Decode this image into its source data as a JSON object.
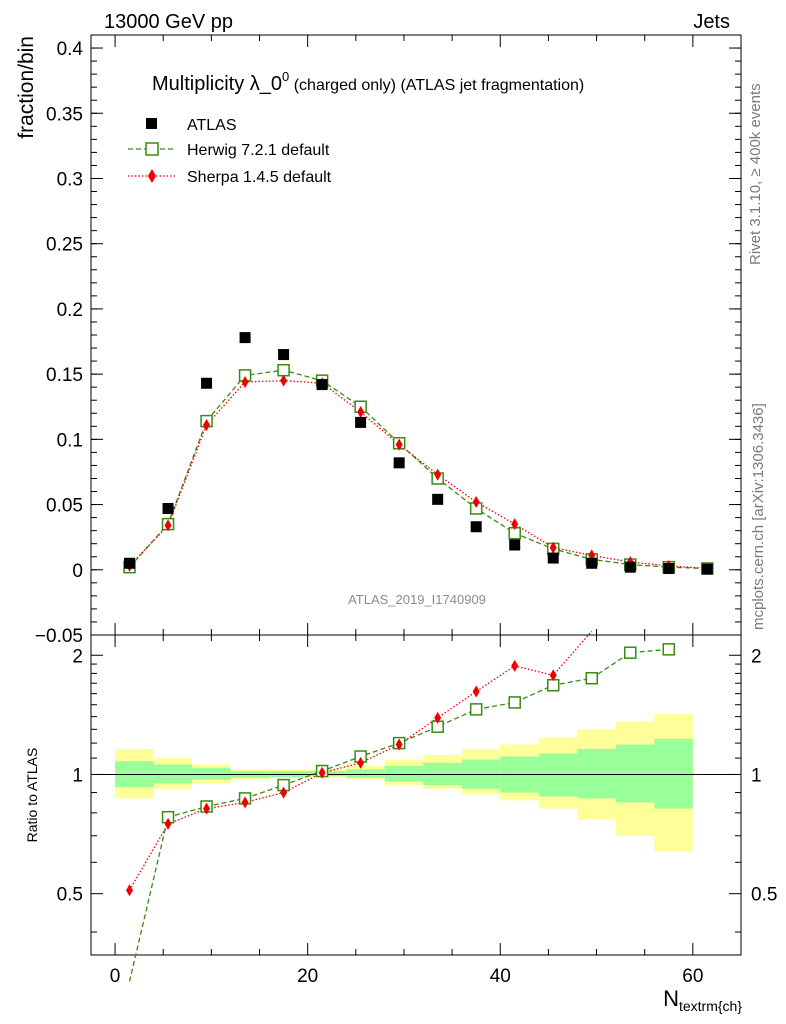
{
  "header": {
    "left": "13000 GeV pp",
    "right": "Jets"
  },
  "side": {
    "rivet": "Rivet 3.1.10, ≥ 400k events",
    "mcplots": "mcplots.cern.ch [arXiv:1306.3436]"
  },
  "colors": {
    "atlas": "#000000",
    "herwig": "#3a8a12",
    "sherpa": "#ee0000",
    "band_inner": "#99ff99",
    "band_outer": "#ffff99"
  },
  "chart_data": {
    "type": "scatter",
    "title": "Multiplicity λ_0",
    "title_sup": "0",
    "title_rest": " (charged only) (ATLAS jet fragmentation)",
    "watermark": "ATLAS_2019_I1740909",
    "ylabel": "fraction/bin",
    "ratio_ylabel": "Ratio to ATLAS",
    "xlabel": "N",
    "xlabel_sub": "textrm{ch}",
    "xlim": [
      -2.5,
      65
    ],
    "ylim": [
      -0.05,
      0.41
    ],
    "ratio_ylim": [
      0.35,
      2.25
    ],
    "x_ticks": [
      "0",
      "20",
      "40",
      "60"
    ],
    "y_ticks": [
      "−0.05",
      "0",
      "0.05",
      "0.1",
      "0.15",
      "0.2",
      "0.25",
      "0.3",
      "0.35",
      "0.4"
    ],
    "ratio_ticks": [
      "0.5",
      "1",
      "2"
    ],
    "x": [
      1.5,
      5.5,
      9.5,
      13.5,
      17.5,
      21.5,
      25.5,
      29.5,
      33.5,
      37.5,
      41.5,
      45.5,
      49.5,
      53.5,
      57.5,
      61.5
    ],
    "bin_edges": [
      0,
      4,
      8,
      12,
      16,
      20,
      24,
      28,
      32,
      36,
      40,
      44,
      48,
      52,
      56,
      60
    ],
    "series": [
      {
        "name": "ATLAS",
        "marker": "square",
        "values": [
          0.005,
          0.047,
          0.143,
          0.178,
          0.165,
          0.142,
          0.113,
          0.082,
          0.054,
          0.033,
          0.019,
          0.009,
          0.005,
          0.002,
          0.001,
          0.0005
        ]
      },
      {
        "name": "Herwig 7.2.1 default",
        "marker": "open-square",
        "line": "dashed",
        "values": [
          0.002,
          0.035,
          0.114,
          0.149,
          0.153,
          0.145,
          0.125,
          0.097,
          0.07,
          0.047,
          0.028,
          0.016,
          0.008,
          0.004,
          0.002,
          0.001
        ],
        "ratio": [
          0.3,
          0.78,
          0.83,
          0.87,
          0.94,
          1.02,
          1.11,
          1.2,
          1.32,
          1.46,
          1.52,
          1.68,
          1.75,
          2.03,
          2.07
        ]
      },
      {
        "name": "Sherpa 1.4.5 default",
        "marker": "diamond",
        "line": "dotted",
        "values": [
          0.003,
          0.034,
          0.111,
          0.144,
          0.145,
          0.143,
          0.121,
          0.096,
          0.073,
          0.052,
          0.035,
          0.017,
          0.011,
          0.006,
          0.003,
          0.001
        ],
        "ratio": [
          0.51,
          0.75,
          0.82,
          0.85,
          0.9,
          1.01,
          1.07,
          1.19,
          1.39,
          1.62,
          1.88,
          1.78,
          2.3
        ]
      }
    ],
    "band_inner": [
      [
        0.93,
        1.08
      ],
      [
        0.95,
        1.06
      ],
      [
        0.97,
        1.04
      ],
      [
        0.98,
        1.02
      ],
      [
        0.985,
        1.02
      ],
      [
        0.99,
        1.02
      ],
      [
        0.98,
        1.03
      ],
      [
        0.96,
        1.05
      ],
      [
        0.94,
        1.07
      ],
      [
        0.92,
        1.09
      ],
      [
        0.9,
        1.11
      ],
      [
        0.88,
        1.13
      ],
      [
        0.87,
        1.16
      ],
      [
        0.85,
        1.19
      ],
      [
        0.82,
        1.23
      ]
    ],
    "band_outer": [
      [
        0.87,
        1.16
      ],
      [
        0.92,
        1.1
      ],
      [
        0.95,
        1.06
      ],
      [
        0.97,
        1.03
      ],
      [
        0.98,
        1.03
      ],
      [
        0.985,
        1.03
      ],
      [
        0.97,
        1.05
      ],
      [
        0.94,
        1.09
      ],
      [
        0.92,
        1.12
      ],
      [
        0.89,
        1.16
      ],
      [
        0.86,
        1.19
      ],
      [
        0.82,
        1.24
      ],
      [
        0.77,
        1.3
      ],
      [
        0.7,
        1.36
      ],
      [
        0.64,
        1.42
      ]
    ]
  }
}
